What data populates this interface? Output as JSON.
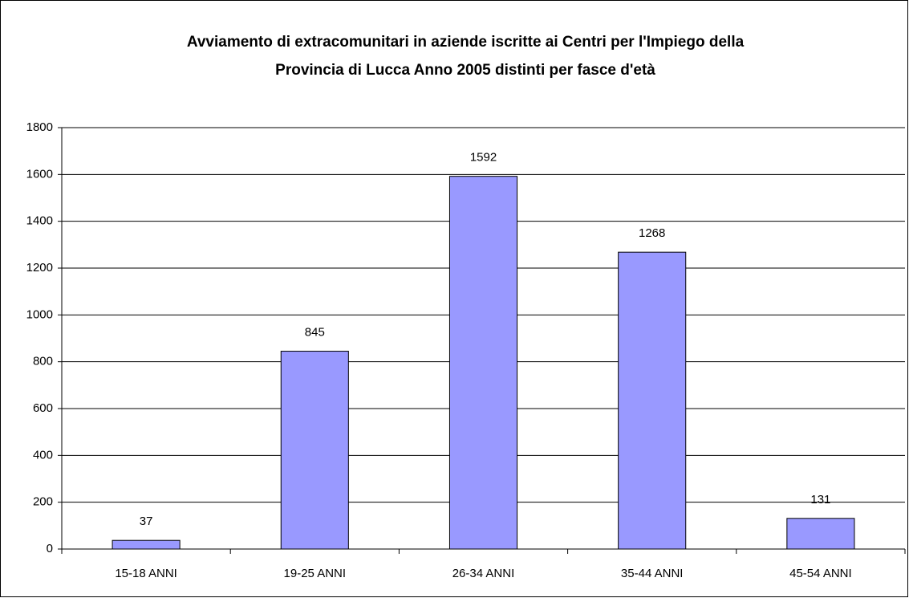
{
  "chart_data": {
    "type": "bar",
    "title": [
      "Avviamento di extracomunitari in aziende iscritte ai Centri per l'Impiego della",
      "Provincia di Lucca Anno 2005 distinti per fasce d'età"
    ],
    "categories": [
      "15-18 ANNI",
      "19-25 ANNI",
      "26-34 ANNI",
      "35-44 ANNI",
      "45-54 ANNI"
    ],
    "values": [
      37,
      845,
      1592,
      1268,
      131
    ],
    "color": "#9999ff",
    "ylim": [
      0,
      1800
    ],
    "yticks": [
      0,
      200,
      400,
      600,
      800,
      1000,
      1200,
      1400,
      1600,
      1800
    ],
    "grid": true
  }
}
